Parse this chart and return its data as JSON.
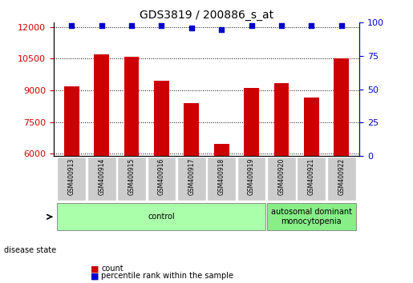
{
  "title": "GDS3819 / 200886_s_at",
  "samples": [
    "GSM400913",
    "GSM400914",
    "GSM400915",
    "GSM400916",
    "GSM400917",
    "GSM400918",
    "GSM400919",
    "GSM400920",
    "GSM400921",
    "GSM400922"
  ],
  "counts": [
    9200,
    10700,
    10600,
    9450,
    8400,
    6450,
    9100,
    9350,
    8650,
    10500
  ],
  "percentile_ranks": [
    98,
    98,
    98,
    98,
    96,
    95,
    98,
    98,
    98,
    98
  ],
  "ylim_left": [
    5900,
    12200
  ],
  "ylim_right": [
    0,
    100
  ],
  "yticks_left": [
    6000,
    7500,
    9000,
    10500,
    12000
  ],
  "yticks_right": [
    0,
    25,
    50,
    75,
    100
  ],
  "bar_color": "#cc0000",
  "dot_color": "#0000cc",
  "control_color": "#aaffaa",
  "disease_color": "#88ee88",
  "xticklabel_bg": "#cccccc",
  "disease_labels": [
    "control",
    "control",
    "control",
    "control",
    "control",
    "control",
    "control",
    "autosomal dominant\nmonocytopenia",
    "autosomal dominant\nmonocytopenia",
    "autosomal dominant\nmonocytopenia"
  ],
  "group_spans": [
    {
      "label": "control",
      "start": 0,
      "end": 6
    },
    {
      "label": "autosomal dominant\nmonocytopenia",
      "start": 7,
      "end": 9
    }
  ]
}
